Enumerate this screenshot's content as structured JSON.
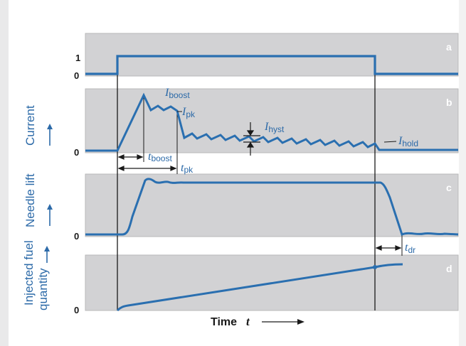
{
  "panels": {
    "a": {
      "letter": "a",
      "tick_high": "1",
      "tick_low": "0"
    },
    "b": {
      "letter": "b",
      "tick_low": "0",
      "ylabel": "Current"
    },
    "c": {
      "letter": "c",
      "tick_low": "0",
      "ylabel": "Needle lift"
    },
    "d": {
      "letter": "d",
      "tick_low": "0",
      "ylabel_line1": "Injected fuel",
      "ylabel_line2": "quantity"
    }
  },
  "annotations": {
    "i_boost": {
      "sym": "I",
      "sub": "boost"
    },
    "i_pk": {
      "sym": "I",
      "sub": "pk"
    },
    "i_hyst": {
      "sym": "I",
      "sub": "hyst"
    },
    "i_hold": {
      "sym": "I",
      "sub": "hold"
    },
    "t_boost": {
      "sym": "t",
      "sub": "boost"
    },
    "t_pk": {
      "sym": "t",
      "sub": "pk"
    },
    "t_dr": {
      "sym": "t",
      "sub": "dr"
    }
  },
  "xaxis": {
    "label": "Time",
    "sym": "t"
  },
  "colors": {
    "panel_fill": "#d2d2d4",
    "trace": "#2a6fb0",
    "label": "#2c6aa8",
    "frame": "#1a1a1a"
  }
}
